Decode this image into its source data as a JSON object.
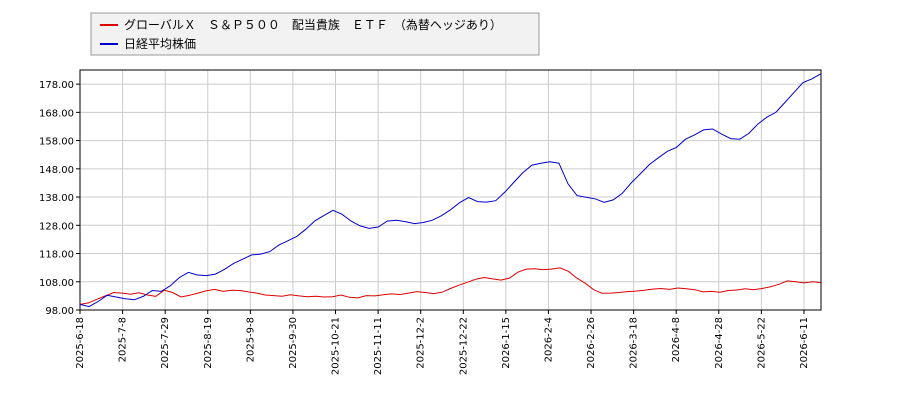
{
  "chart_data": {
    "type": "line",
    "grid": true,
    "legend_position": "top-left",
    "x_tick_labels": [
      "2025-6-18",
      "2025-7-8",
      "2025-7-29",
      "2025-8-19",
      "2025-9-8",
      "2025-9-30",
      "2025-10-21",
      "2025-11-11",
      "2025-12-2",
      "2025-12-22",
      "2026-1-15",
      "2026-2-4",
      "2026-2-26",
      "2026-3-18",
      "2026-4-8",
      "2026-4-28",
      "2026-5-22",
      "2026-6-11"
    ],
    "y_tick_labels": [
      "98.00",
      "108.00",
      "118.00",
      "128.00",
      "138.00",
      "148.00",
      "158.00",
      "168.00",
      "178.00"
    ],
    "ylim": [
      98,
      183
    ],
    "series": [
      {
        "name": "グローバルＸ　Ｓ＆Ｐ５００　配当貴族　ＥＴＦ　（為替ヘッジあり）",
        "color": "#dd0000",
        "values": [
          100.0,
          100.5,
          101.8,
          103.0,
          104.2,
          104.0,
          103.6,
          104.1,
          103.3,
          102.8,
          105.0,
          104.2,
          102.6,
          103.2,
          104.0,
          104.8,
          105.3,
          104.6,
          105.0,
          104.9,
          104.4,
          104.0,
          103.3,
          103.1,
          102.9,
          103.4,
          103.0,
          102.7,
          102.9,
          102.6,
          102.7,
          103.3,
          102.5,
          102.3,
          103.1,
          103.0,
          103.4,
          103.7,
          103.5,
          104.0,
          104.5,
          104.2,
          103.8,
          104.3,
          105.6,
          106.8,
          107.8,
          108.9,
          109.5,
          109.0,
          108.6,
          109.3,
          111.4,
          112.5,
          112.6,
          112.3,
          112.5,
          112.9,
          111.7,
          109.3,
          107.5,
          105.2,
          103.9,
          104.0,
          104.2,
          104.5,
          104.7,
          105.0,
          105.4,
          105.6,
          105.3,
          105.8,
          105.5,
          105.2,
          104.4,
          104.6,
          104.3,
          104.9,
          105.1,
          105.5,
          105.2,
          105.6,
          106.2,
          107.1,
          108.3,
          108.0,
          107.6,
          108.0,
          107.7
        ]
      },
      {
        "name": "日経平均株価",
        "color": "#0000cc",
        "values": [
          100.0,
          99.2,
          101.0,
          103.2,
          102.6,
          102.0,
          101.6,
          102.8,
          104.9,
          104.6,
          106.6,
          109.5,
          111.3,
          110.4,
          110.2,
          110.7,
          112.4,
          114.5,
          116.0,
          117.5,
          117.8,
          118.7,
          121.0,
          122.5,
          124.1,
          126.6,
          129.6,
          131.5,
          133.3,
          131.9,
          129.5,
          127.8,
          126.9,
          127.4,
          129.5,
          129.8,
          129.3,
          128.6,
          129.0,
          129.8,
          131.4,
          133.5,
          136.0,
          137.8,
          136.4,
          136.2,
          136.7,
          139.7,
          143.2,
          146.6,
          149.3,
          150.0,
          150.5,
          150.0,
          142.7,
          138.5,
          137.9,
          137.4,
          136.1,
          137.0,
          139.3,
          143.0,
          146.2,
          149.5,
          151.9,
          154.2,
          155.6,
          158.5,
          160.0,
          161.8,
          162.1,
          160.3,
          158.7,
          158.5,
          160.5,
          163.8,
          166.3,
          168.0,
          171.5,
          175.0,
          178.5,
          179.9,
          181.7
        ]
      }
    ]
  }
}
